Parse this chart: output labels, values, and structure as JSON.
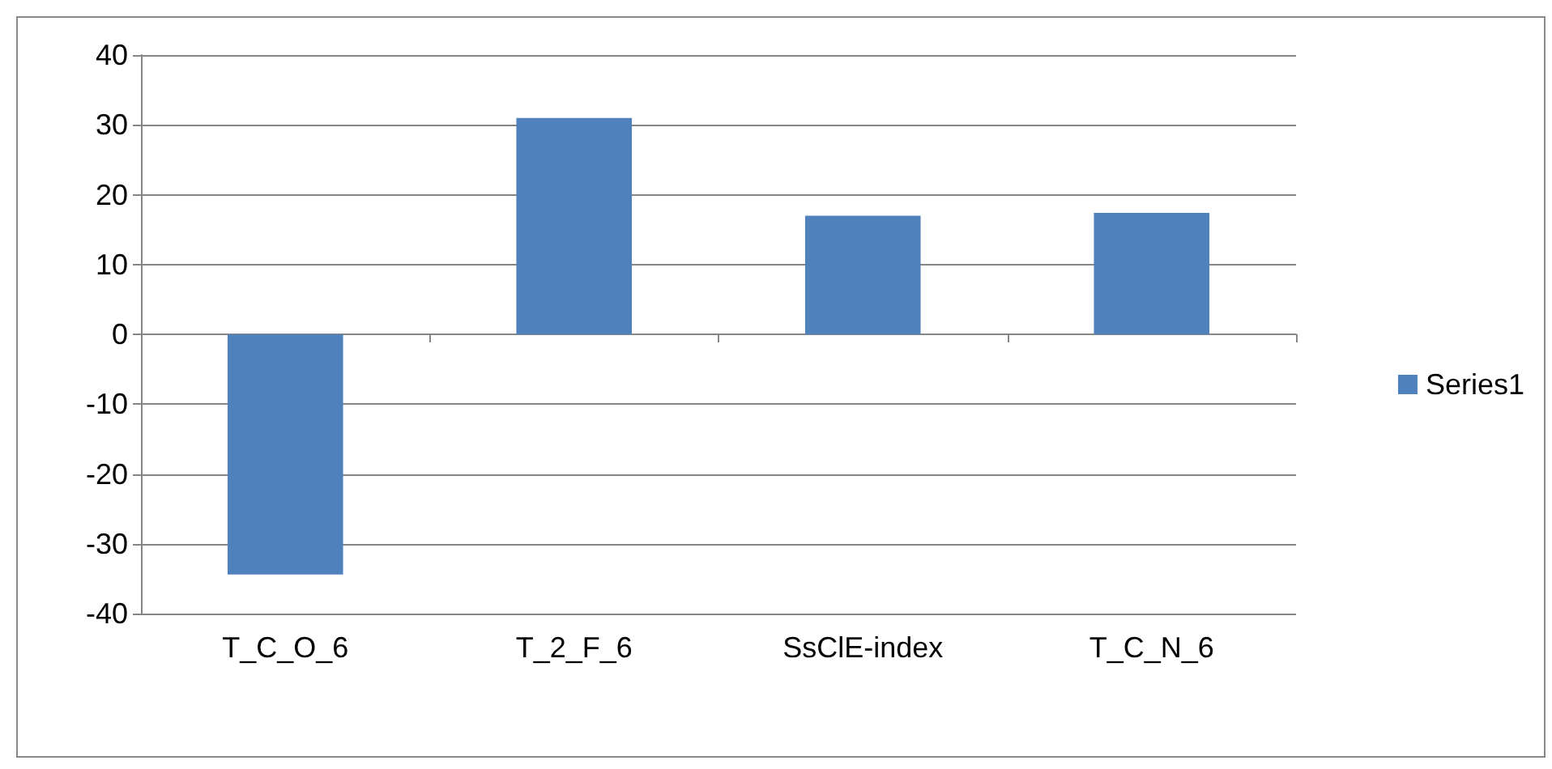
{
  "chart_data": {
    "type": "bar",
    "categories": [
      "T_C_O_6",
      "T_2_F_6",
      "SsClE-index",
      "T_C_N_6"
    ],
    "series": [
      {
        "name": "Series1",
        "color": "#4f81bd",
        "values": [
          -34.4,
          31,
          17,
          17.4
        ]
      }
    ],
    "ylim": [
      -40,
      40
    ],
    "yticks": [
      -40,
      -30,
      -20,
      -10,
      0,
      10,
      20,
      30,
      40
    ],
    "grid": "y",
    "legend": "right"
  }
}
